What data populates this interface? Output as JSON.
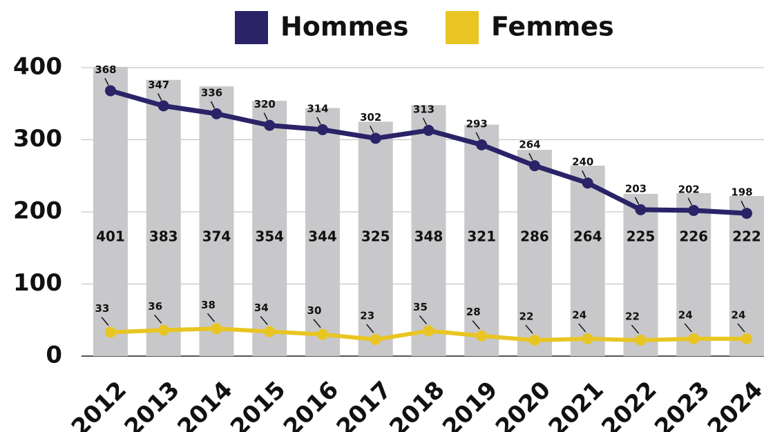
{
  "chart_data": {
    "type": "line",
    "categories": [
      "2012",
      "2013",
      "2014",
      "2015",
      "2016",
      "2017",
      "2018",
      "2019",
      "2020",
      "2021",
      "2022",
      "2023",
      "2024"
    ],
    "series": [
      {
        "name": "Hommes",
        "color": "#2a2368",
        "values": [
          368,
          347,
          336,
          320,
          314,
          302,
          313,
          293,
          264,
          240,
          203,
          202,
          198
        ]
      },
      {
        "name": "Femmes",
        "color": "#e8c523",
        "values": [
          33,
          36,
          38,
          34,
          30,
          23,
          35,
          28,
          22,
          24,
          22,
          24,
          24
        ]
      }
    ],
    "totals": {
      "color": "#c8c8ca",
      "values": [
        401,
        383,
        374,
        354,
        344,
        325,
        348,
        321,
        286,
        264,
        225,
        226,
        222
      ]
    },
    "ylim": [
      0,
      400
    ],
    "yticks": [
      0,
      100,
      200,
      300,
      400
    ],
    "grid": true
  }
}
